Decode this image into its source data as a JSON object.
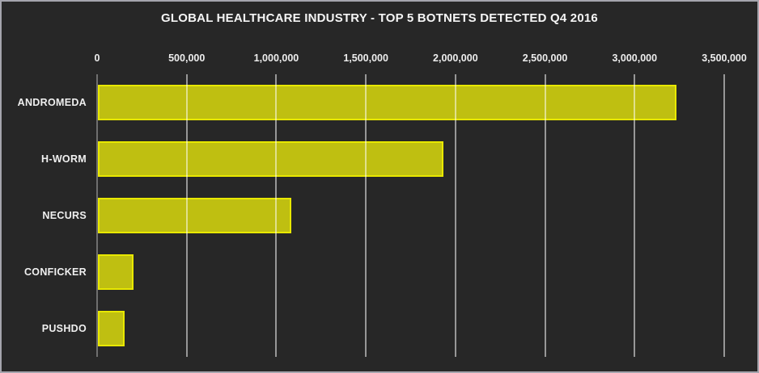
{
  "chart_data": {
    "type": "bar",
    "orientation": "horizontal",
    "title": "GLOBAL HEALTHCARE INDUSTRY - TOP 5 BOTNETS DETECTED Q4 2016",
    "categories": [
      "ANDROMEDA",
      "H-WORM",
      "NECURS",
      "CONFICKER",
      "PUSHDO"
    ],
    "values": [
      3230000,
      1930000,
      1080000,
      200000,
      150000
    ],
    "xlabel": "",
    "ylabel": "",
    "xlim": [
      0,
      3500000
    ],
    "x_tick_labels": [
      "0",
      "500,000",
      "1,000,000",
      "1,500,000",
      "2,000,000",
      "2,500,000",
      "3,000,000",
      "3,500,000"
    ],
    "x_tick_values": [
      0,
      500000,
      1000000,
      1500000,
      2000000,
      2500000,
      3000000,
      3500000
    ],
    "grid": "vertical-gridlines-on",
    "legend": "none",
    "colors": {
      "background": "#272727",
      "frame_border": "#a5a5ad",
      "bar_fill": "#bfbf11",
      "bar_border": "#e8e800",
      "gridline": "#bdbdbd",
      "axis_line": "#6f6f6f",
      "text": "#f5f5f5"
    }
  }
}
